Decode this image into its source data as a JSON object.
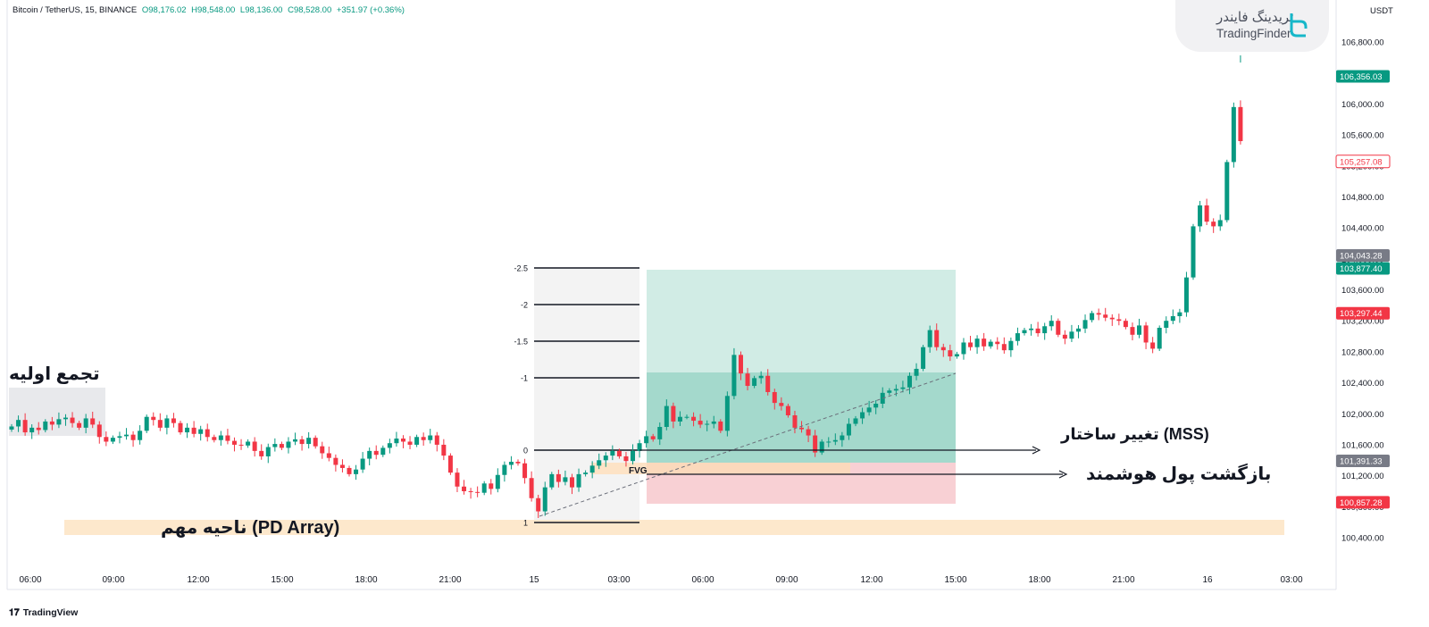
{
  "header": {
    "symbol": "Bitcoin / TetherUS, 15, BINANCE",
    "open": "O98,176.02",
    "high": "H98,548.00",
    "low": "L98,136.00",
    "close": "C98,528.00",
    "change": "+351.97 (+0.36%)"
  },
  "branding": {
    "name_fa": "تریدینگ فایندر",
    "name_en": "TradingFinder",
    "icon": "tradingfinder-logo-icon"
  },
  "price_axis": {
    "currency": "USDT",
    "ticks": [
      "106,800.00",
      "106,400.00",
      "106,000.00",
      "105,600.00",
      "105,200.00",
      "104,800.00",
      "104,400.00",
      "104,000.00",
      "103,600.00",
      "103,200.00",
      "102,800.00",
      "102,400.00",
      "102,000.00",
      "101,600.00",
      "101,200.00",
      "100,800.00",
      "100,400.00"
    ],
    "badges": [
      {
        "text": "106,356.03",
        "style": "green"
      },
      {
        "text": "105,257.08",
        "style": "red-outline"
      },
      {
        "text": "104,043.28",
        "style": "gray"
      },
      {
        "text": "103,877.40",
        "style": "green"
      },
      {
        "text": "103,297.44",
        "style": "red"
      },
      {
        "text": "101,391.33",
        "style": "gray"
      },
      {
        "text": "100,857.28",
        "style": "red"
      }
    ]
  },
  "time_axis": {
    "ticks": [
      "06:00",
      "09:00",
      "12:00",
      "15:00",
      "18:00",
      "21:00",
      "15",
      "03:00",
      "06:00",
      "09:00",
      "12:00",
      "15:00",
      "18:00",
      "21:00",
      "16",
      "03:00"
    ]
  },
  "fib_levels": [
    {
      "label": "-2.5"
    },
    {
      "label": "-2"
    },
    {
      "label": "-1.5"
    },
    {
      "label": "-1"
    },
    {
      "label": "0"
    },
    {
      "label": "1"
    }
  ],
  "annotations": {
    "initial_consolidation": "تجمع اولیه",
    "mss": "تغییر ساختار (MSS)",
    "smart_money_return": "بازگشت پول هوشمند",
    "pd_array": "ناحیه مهم (PD Array)",
    "fvg": "FVG"
  },
  "footer": {
    "brand": "TradingView",
    "icon": "tradingview-logo-icon"
  },
  "colors": {
    "up": "#089981",
    "down": "#f23645",
    "target_zone": "#b2dfd4",
    "stop_zone": "#f8d0d4",
    "pd_zone": "#fde8cc",
    "consolidation_zone": "#e8e9ec"
  },
  "candle_series_note_free": {
    "prices": [
      101836,
      101920,
      101760,
      101820,
      101790,
      101900,
      101860,
      101930,
      101950,
      101880,
      101820,
      101940,
      101860,
      101700,
      101640,
      101690,
      101710,
      101730,
      101660,
      101780,
      101960,
      101920,
      101820,
      101940,
      101880,
      101760,
      101820,
      101740,
      101800,
      101700,
      101660,
      101720,
      101650,
      101600,
      101590,
      101640,
      101520,
      101450,
      101570,
      101610,
      101560,
      101640,
      101670,
      101610,
      101690,
      101580,
      101490,
      101430,
      101340,
      101300,
      101220,
      101280,
      101420,
      101520,
      101470,
      101560,
      101620,
      101680,
      101640,
      101600,
      101700,
      101660,
      101720,
      101600,
      101460,
      101240,
      101060,
      101000,
      100990,
      100980,
      101100,
      101030,
      101210,
      101340,
      101380,
      101360,
      101170,
      100910,
      100740,
      101050,
      101220,
      101120,
      101180,
      101050,
      101220,
      101240,
      101330,
      101400,
      101460,
      101520,
      101450,
      101390,
      101520,
      101620,
      101710,
      101670,
      101830,
      102100,
      101900,
      101960,
      101960,
      101910,
      101860,
      101870,
      101900,
      101780,
      102230,
      102760,
      102520,
      102360,
      102460,
      102490,
      102280,
      102140,
      102100,
      101980,
      101820,
      101800,
      101720,
      101500,
      101640,
      101640,
      101660,
      101720,
      101870,
      101940,
      102020,
      102080,
      102130,
      102270,
      102300,
      102320,
      102340,
      102490,
      102580,
      102860,
      103080,
      102860,
      102820,
      102740,
      102770,
      102920,
      102860,
      102970,
      102870,
      102930,
      102900,
      102820,
      102940,
      103040,
      103080,
      103100,
      103040,
      103130,
      103200,
      103020,
      102970,
      103060,
      103100,
      103210,
      103300,
      103280,
      103240,
      103220,
      103200,
      103120,
      103020,
      103140,
      102920,
      102840,
      103110,
      103200,
      103260,
      103310,
      103760,
      104420,
      104690,
      104480,
      104420,
      104500,
      105250,
      105960,
      105520
    ]
  }
}
